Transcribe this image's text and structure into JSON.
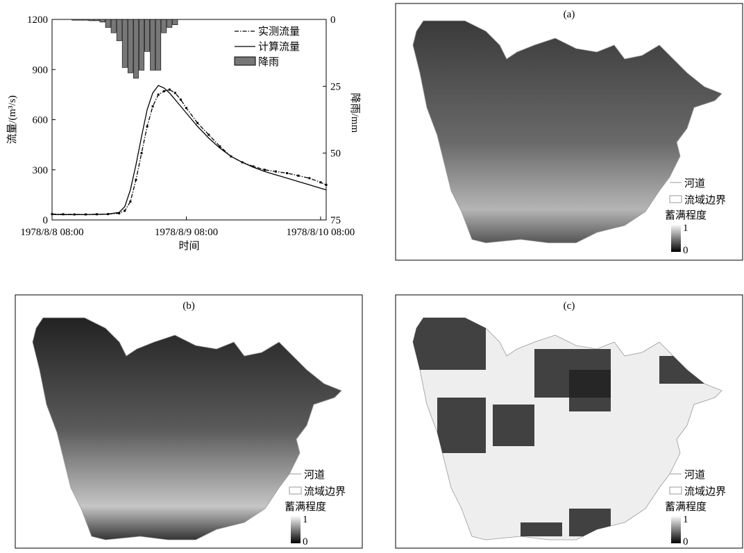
{
  "chart_data": {
    "type": "line",
    "xlabel": "时间",
    "ylabel": "流量/(m³/s)",
    "y2label": "降雨/mm",
    "xlim": [
      0,
      49
    ],
    "xticks": [
      {
        "value": 0,
        "label": "1978/8/8 08:00"
      },
      {
        "value": 24,
        "label": "1978/8/9 08:00"
      },
      {
        "value": 48,
        "label": "1978/8/10 08:00"
      }
    ],
    "ylim": [
      0,
      1200
    ],
    "yticks": [
      0,
      300,
      600,
      900,
      1200
    ],
    "y2lim": [
      75,
      0
    ],
    "y2ticks": [
      0,
      25,
      50,
      75
    ],
    "legend": "upper right",
    "series": [
      {
        "name": "实测流量",
        "color": "#000000",
        "style": "dash-dot",
        "markers": true,
        "x": [
          0,
          2,
          4,
          6,
          8,
          10,
          12,
          13,
          14,
          15,
          16,
          17,
          18,
          19,
          20,
          21,
          22,
          23,
          24,
          26,
          28,
          30,
          32,
          34,
          36,
          38,
          40,
          42,
          44,
          46,
          48,
          49
        ],
        "values": [
          35,
          34,
          33,
          33,
          34,
          35,
          40,
          55,
          110,
          240,
          400,
          560,
          680,
          750,
          770,
          780,
          760,
          720,
          670,
          580,
          510,
          440,
          380,
          345,
          320,
          300,
          290,
          280,
          265,
          250,
          225,
          210
        ]
      },
      {
        "name": "计算流量",
        "color": "#000000",
        "style": "solid",
        "markers": false,
        "x": [
          0,
          2,
          4,
          6,
          8,
          10,
          12,
          13,
          14,
          15,
          16,
          17,
          18,
          19,
          20,
          21,
          22,
          23,
          24,
          26,
          28,
          30,
          32,
          34,
          36,
          38,
          40,
          42,
          44,
          46,
          48,
          49
        ],
        "values": [
          33,
          32,
          32,
          32,
          33,
          35,
          45,
          80,
          180,
          330,
          500,
          660,
          760,
          805,
          790,
          760,
          720,
          680,
          640,
          560,
          490,
          430,
          380,
          345,
          315,
          290,
          270,
          250,
          230,
          210,
          190,
          180
        ]
      },
      {
        "name": "降雨",
        "color": "#777777",
        "kind": "bar",
        "axis": "y2",
        "x": [
          4,
          5,
          6,
          7,
          8,
          9,
          10,
          11,
          12,
          13,
          14,
          15,
          16,
          17,
          18,
          19,
          20,
          21,
          22
        ],
        "values": [
          0.3,
          0.3,
          0.3,
          0.5,
          0.5,
          1,
          3,
          5,
          8,
          18,
          20,
          22,
          19,
          12,
          19,
          19,
          5,
          3,
          2
        ]
      }
    ]
  },
  "maps": [
    {
      "label": "(a)"
    },
    {
      "label": "(b)"
    },
    {
      "label": "(c)"
    }
  ],
  "map_legend": {
    "river": "河道",
    "boundary": "流域边界",
    "title": "蓄满程度",
    "max": "1",
    "min": "0"
  }
}
